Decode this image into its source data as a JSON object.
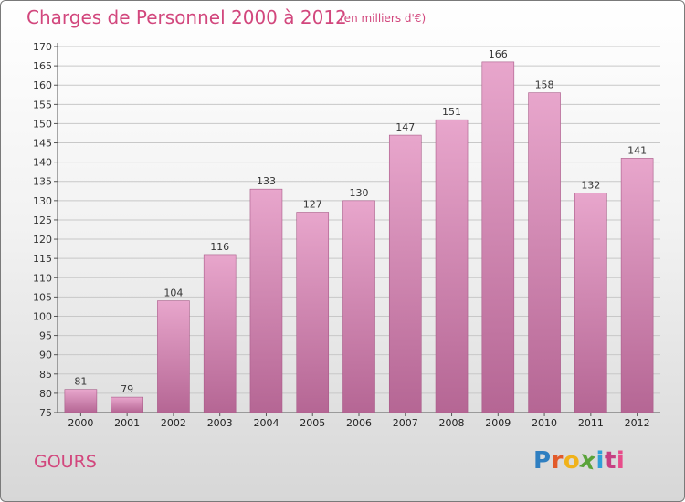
{
  "header": {
    "title": "Charges de Personnel 2000 à 2012",
    "subtitle": "(en milliers d'€)"
  },
  "footer": {
    "commune": "GOURS",
    "logo_letters": [
      "P",
      "r",
      "o",
      "x",
      "i",
      "t",
      "i"
    ],
    "logo_colors": [
      "#2f7fc1",
      "#e25a2a",
      "#f0b21a",
      "#5aa33a",
      "#2f9fd9",
      "#c63f82",
      "#e84c8a"
    ]
  },
  "colors": {
    "title": "#d2477d",
    "bar_top": "#e8a6cc",
    "bar_bottom": "#b56694"
  },
  "chart_data": {
    "type": "bar",
    "title": "Charges de Personnel 2000 à 2012",
    "subtitle": "(en milliers d'€)",
    "categories": [
      "2000",
      "2001",
      "2002",
      "2003",
      "2004",
      "2005",
      "2006",
      "2007",
      "2008",
      "2009",
      "2010",
      "2011",
      "2012"
    ],
    "values": [
      81,
      79,
      104,
      116,
      133,
      127,
      130,
      147,
      151,
      166,
      158,
      132,
      141
    ],
    "ylim": [
      75,
      170
    ],
    "yticks": [
      75,
      80,
      85,
      90,
      95,
      100,
      105,
      110,
      115,
      120,
      125,
      130,
      135,
      140,
      145,
      150,
      155,
      160,
      165,
      170
    ],
    "grid": true,
    "legend": "none"
  }
}
